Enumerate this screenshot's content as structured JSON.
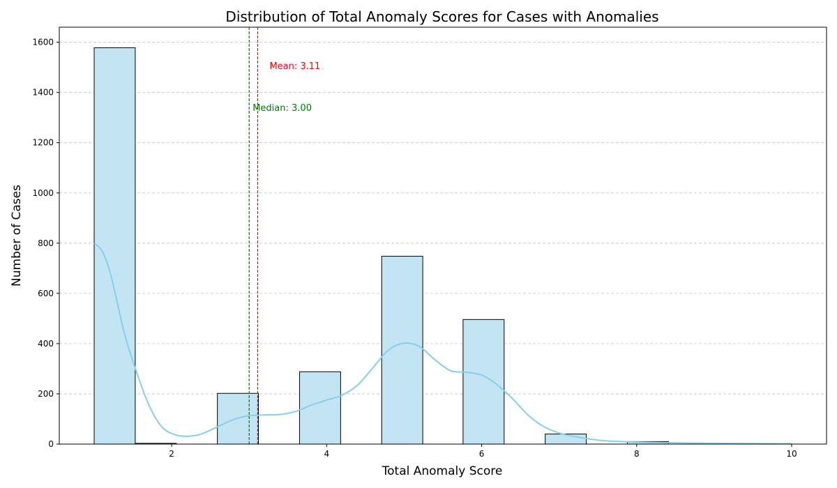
{
  "chart_data": {
    "type": "bar",
    "title": "Distribution of Total Anomaly Scores for Cases with Anomalies",
    "xlabel": "Total Anomaly Score",
    "ylabel": "Number of Cases",
    "xlim": [
      0.55,
      10.45
    ],
    "ylim": [
      0,
      1660
    ],
    "x_ticks": [
      2,
      4,
      6,
      8,
      10
    ],
    "y_ticks": [
      0,
      200,
      400,
      600,
      800,
      1000,
      1200,
      1400,
      1600
    ],
    "grid": "y-dashed",
    "bins": [
      {
        "x0": 1.0,
        "x1": 1.53,
        "value": 1578
      },
      {
        "x0": 1.53,
        "x1": 2.06,
        "value": 3
      },
      {
        "x0": 2.59,
        "x1": 3.12,
        "value": 202
      },
      {
        "x0": 3.65,
        "x1": 4.18,
        "value": 288
      },
      {
        "x0": 4.71,
        "x1": 5.24,
        "value": 748
      },
      {
        "x0": 5.76,
        "x1": 6.29,
        "value": 496
      },
      {
        "x0": 6.82,
        "x1": 7.35,
        "value": 40
      },
      {
        "x0": 7.88,
        "x1": 8.41,
        "value": 10
      }
    ],
    "kde": {
      "x": [
        1.0,
        1.1,
        1.2,
        1.3,
        1.4,
        1.5,
        1.6,
        1.7,
        1.8,
        1.9,
        2.0,
        2.1,
        2.2,
        2.3,
        2.4,
        2.6,
        2.8,
        3.0,
        3.2,
        3.4,
        3.6,
        3.8,
        4.0,
        4.2,
        4.4,
        4.6,
        4.8,
        5.0,
        5.2,
        5.4,
        5.6,
        5.8,
        6.0,
        6.2,
        6.4,
        6.6,
        6.8,
        7.0,
        7.2,
        7.4,
        7.6,
        8.0,
        8.5,
        9.0,
        9.5,
        10.0
      ],
      "y": [
        800,
        770,
        690,
        560,
        430,
        330,
        240,
        160,
        100,
        60,
        42,
        33,
        31,
        34,
        42,
        70,
        98,
        113,
        116,
        118,
        130,
        155,
        175,
        195,
        235,
        305,
        375,
        402,
        388,
        335,
        292,
        286,
        275,
        236,
        180,
        115,
        70,
        44,
        30,
        20,
        13,
        8,
        5,
        3,
        2,
        1
      ]
    },
    "lines": [
      {
        "name": "Mean",
        "x": 3.11,
        "label": "Mean: 3.11",
        "color": "#ff0000"
      },
      {
        "name": "Median",
        "x": 3.0,
        "label": "Median: 3.00",
        "color": "#008000"
      }
    ],
    "colors": {
      "bar_fill": "#c3e5f3",
      "bar_edge": "#000000",
      "kde_line": "#87ceeb",
      "grid": "#c0c0c0"
    }
  }
}
